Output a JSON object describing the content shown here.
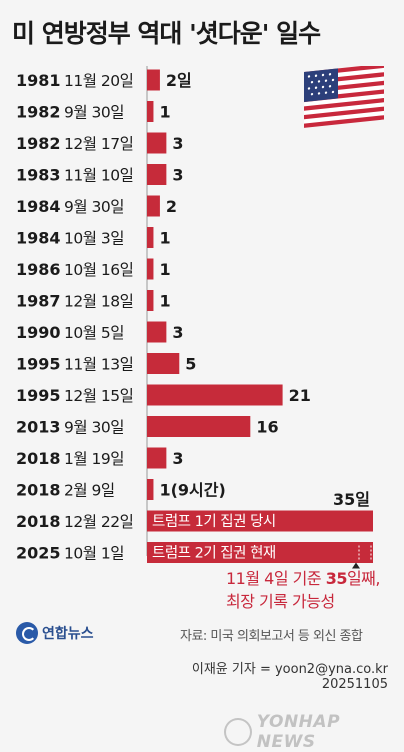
{
  "title": "미 연방정부 역대 '셧다운' 일수",
  "colors": {
    "bar": "#c62b3a",
    "text": "#1b1b1b",
    "accent": "#c8283c"
  },
  "chart_data": {
    "type": "bar",
    "orientation": "horizontal",
    "unit": "일",
    "categories": [
      {
        "year": "1981",
        "date": "11월 20일"
      },
      {
        "year": "1982",
        "date": "9월 30일"
      },
      {
        "year": "1982",
        "date": "12월 17일"
      },
      {
        "year": "1983",
        "date": "11월 10일"
      },
      {
        "year": "1984",
        "date": "9월 30일"
      },
      {
        "year": "1984",
        "date": "10월 3일"
      },
      {
        "year": "1986",
        "date": "10월 16일"
      },
      {
        "year": "1987",
        "date": "12월 18일"
      },
      {
        "year": "1990",
        "date": "10월 5일"
      },
      {
        "year": "1995",
        "date": "11월 13일"
      },
      {
        "year": "1995",
        "date": "12월 15일"
      },
      {
        "year": "2013",
        "date": "9월 30일"
      },
      {
        "year": "2018",
        "date": "1월 19일"
      },
      {
        "year": "2018",
        "date": "2월 9일"
      },
      {
        "year": "2018",
        "date": "12월 22일"
      },
      {
        "year": "2025",
        "date": "10월 1일"
      }
    ],
    "values": [
      2,
      1,
      3,
      3,
      2,
      1,
      1,
      1,
      3,
      5,
      21,
      16,
      3,
      1,
      35,
      35
    ],
    "value_labels": [
      "2일",
      "1",
      "3",
      "3",
      "2",
      "1",
      "1",
      "1",
      "3",
      "5",
      "21",
      "16",
      "3",
      "1(9시간)",
      "35일",
      ""
    ],
    "bar_labels": [
      "",
      "",
      "",
      "",
      "",
      "",
      "",
      "",
      "",
      "",
      "",
      "",
      "",
      "",
      "트럼프 1기 집권 당시",
      "트럼프 2기 집권 현재"
    ],
    "ongoing": [
      false,
      false,
      false,
      false,
      false,
      false,
      false,
      false,
      false,
      false,
      false,
      false,
      false,
      false,
      false,
      true
    ],
    "xlim": [
      0,
      35
    ]
  },
  "note": {
    "line1_pre": "11월 4일 기준 ",
    "line1_bold": "35",
    "line1_post": "일째,",
    "line2": "최장 기록 가능성"
  },
  "source": "자료: 미국 의회보고서 등 외신 종합",
  "logo": "연합뉴스",
  "credit": "이재윤 기자 = yoon2@yna.co.kr",
  "date": "20251105",
  "watermark": "YONHAP NEWS"
}
